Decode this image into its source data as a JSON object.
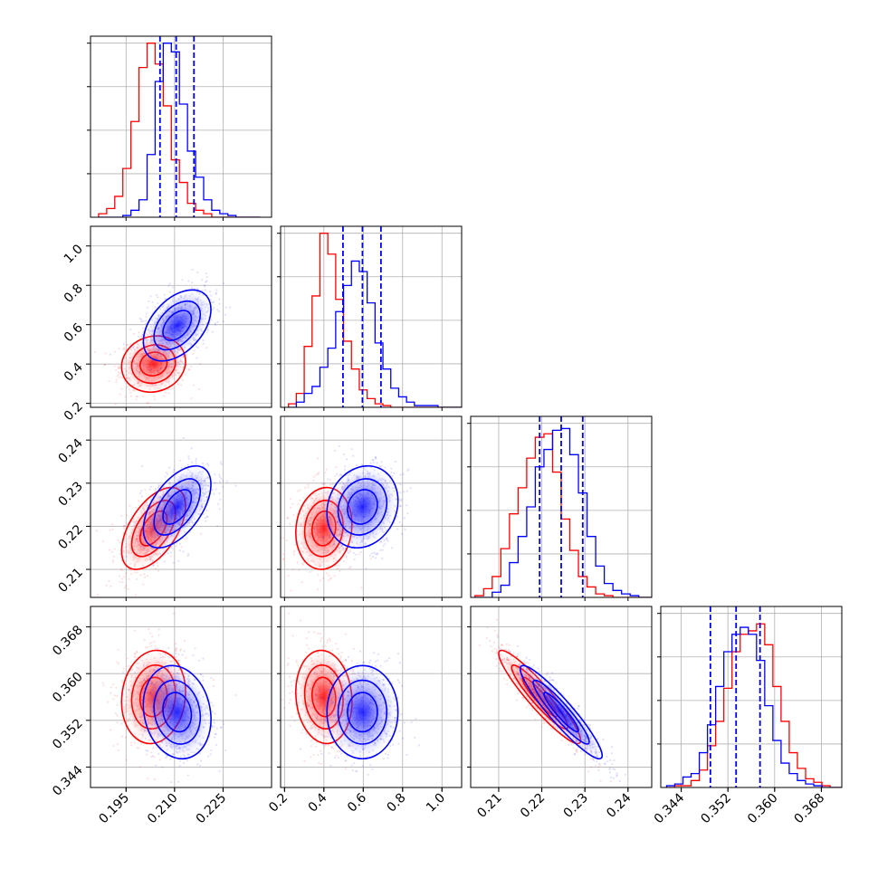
{
  "chart_data": {
    "type": "corner",
    "series": [
      {
        "name": "",
        "color": "#0000ff"
      },
      {
        "name": "",
        "color": "#ff0000"
      }
    ],
    "params": [
      {
        "range": [
          0.184,
          0.24
        ],
        "ticks": [
          0.195,
          0.21,
          0.225
        ],
        "tick_labels": [
          "0.195",
          "0.210",
          "0.225"
        ]
      },
      {
        "range": [
          0.18,
          1.1
        ],
        "ticks": [
          0.2,
          0.4,
          0.6,
          0.8,
          1.0
        ],
        "tick_labels": [
          "0.2",
          "0.4",
          "0.6",
          "0.8",
          "1.0"
        ]
      },
      {
        "range": [
          0.2035,
          0.2455
        ],
        "ticks": [
          0.21,
          0.22,
          0.23,
          0.24
        ],
        "tick_labels": [
          "0.21",
          "0.22",
          "0.23",
          "0.24"
        ]
      },
      {
        "range": [
          0.3405,
          0.3715
        ],
        "ticks": [
          0.344,
          0.352,
          0.36,
          0.368
        ],
        "tick_labels": [
          "0.344",
          "0.352",
          "0.360",
          "0.368"
        ]
      }
    ],
    "quantile_lines": [
      [
        0.2055,
        0.2105,
        0.216
      ],
      [
        0.497,
        0.596,
        0.69
      ],
      [
        0.2195,
        0.2245,
        0.2295
      ],
      [
        0.349,
        0.3534,
        0.3575
      ]
    ],
    "hist1d": [
      {
        "bin_edges_min": 0.1865,
        "bin_width": 0.0025,
        "blue": [
          0,
          0,
          0,
          0.01,
          0.04,
          0.1,
          0.36,
          0.78,
          1.0,
          0.95,
          0.65,
          0.38,
          0.23,
          0.1,
          0.04,
          0.02,
          0.01,
          0,
          0,
          0
        ],
        "red": [
          0.02,
          0.05,
          0.12,
          0.28,
          0.55,
          0.86,
          1.0,
          0.88,
          0.64,
          0.33,
          0.2,
          0.08,
          0.04,
          0.02,
          0,
          0,
          0,
          0,
          0,
          0
        ]
      },
      {
        "bin_edges_min": 0.22,
        "bin_width": 0.04,
        "blue": [
          0,
          0.03,
          0.08,
          0.12,
          0.23,
          0.34,
          0.55,
          0.7,
          0.84,
          0.78,
          0.6,
          0.37,
          0.22,
          0.11,
          0.06,
          0.03,
          0.01,
          0.01,
          0.01,
          0,
          0,
          0
        ],
        "red": [
          0.02,
          0.08,
          0.35,
          0.64,
          1.0,
          0.88,
          0.62,
          0.38,
          0.22,
          0.1,
          0.05,
          0.02,
          0.01,
          0,
          0,
          0,
          0,
          0,
          0,
          0,
          0,
          0
        ]
      },
      {
        "bin_edges_min": 0.2045,
        "bin_width": 0.002,
        "blue": [
          0,
          0,
          0.03,
          0.07,
          0.2,
          0.35,
          0.52,
          0.75,
          0.85,
          0.96,
          0.97,
          0.82,
          0.6,
          0.35,
          0.18,
          0.08,
          0.04,
          0.02,
          0.01,
          0,
          0
        ],
        "red": [
          0.01,
          0.05,
          0.12,
          0.28,
          0.48,
          0.63,
          0.8,
          0.92,
          0.94,
          0.72,
          0.45,
          0.27,
          0.12,
          0.06,
          0.02,
          0.01,
          0,
          0,
          0,
          0,
          0
        ]
      },
      {
        "bin_edges_min": 0.3415,
        "bin_width": 0.0014,
        "blue": [
          0.01,
          0.02,
          0.06,
          0.08,
          0.2,
          0.36,
          0.58,
          0.78,
          0.88,
          0.92,
          0.88,
          0.73,
          0.47,
          0.27,
          0.14,
          0.08,
          0.04,
          0.02,
          0.01,
          0,
          0,
          0
        ],
        "red": [
          0,
          0.01,
          0.01,
          0.04,
          0.1,
          0.24,
          0.38,
          0.57,
          0.78,
          0.88,
          0.9,
          0.94,
          0.82,
          0.58,
          0.38,
          0.2,
          0.11,
          0.05,
          0.03,
          0.01,
          0,
          0
        ]
      }
    ],
    "hist1d_ymax": 1.04,
    "hist1d_grid_ticks": [
      0.25,
      0.5,
      0.75,
      1.0
    ],
    "gaussians": {
      "blue": {
        "mean": [
          0.2108,
          0.596,
          0.2245,
          0.3534
        ],
        "std": [
          0.0055,
          0.095,
          0.005,
          0.0042
        ],
        "corr": [
          [
            1,
            0.45,
            0.55,
            -0.15
          ],
          [
            0.45,
            1,
            0.15,
            0.0
          ],
          [
            0.55,
            0.15,
            1,
            -0.93
          ],
          [
            -0.15,
            0.0,
            -0.93,
            1
          ]
        ]
      },
      "red": {
        "mean": [
          0.2035,
          0.4,
          0.2195,
          0.356
        ],
        "std": [
          0.0052,
          0.075,
          0.005,
          0.0042
        ],
        "corr": [
          [
            1,
            0.1,
            0.55,
            0.1
          ],
          [
            0.1,
            1,
            0.1,
            -0.1
          ],
          [
            0.55,
            0.1,
            1,
            -0.93
          ],
          [
            0.1,
            -0.1,
            -0.93,
            1
          ]
        ]
      }
    },
    "contour_sigmas": [
      0.8,
      1.3,
      1.9
    ],
    "grid": true
  }
}
